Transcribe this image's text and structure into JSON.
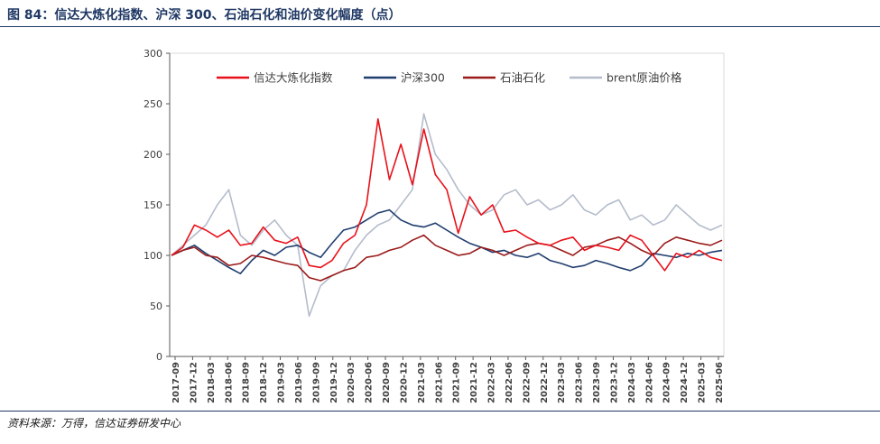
{
  "figure_title": "图 84：信达大炼化指数、沪深 300、石油石化和油价变化幅度（点）",
  "source_note": "资料来源：万得，信达证券研发中心",
  "chart_data": {
    "type": "line",
    "title": "",
    "xlabel": "",
    "ylabel": "",
    "ylim": [
      0,
      300
    ],
    "yticks": [
      0,
      50,
      100,
      150,
      200,
      250,
      300
    ],
    "grid": false,
    "legend_position": "top-center",
    "x_tick_labels": [
      "2017-09",
      "2017-12",
      "2018-03",
      "2018-06",
      "2018-09",
      "2018-12",
      "2019-03",
      "2019-06",
      "2019-09",
      "2019-12",
      "2020-03",
      "2020-06",
      "2020-09",
      "2020-12",
      "2021-03",
      "2021-06",
      "2021-09",
      "2021-12",
      "2022-03",
      "2022-06",
      "2022-09",
      "2022-12",
      "2023-03",
      "2023-06",
      "2023-09",
      "2023-12",
      "2024-03",
      "2024-06",
      "2024-09",
      "2024-12",
      "2025-03",
      "2025-06"
    ],
    "series": [
      {
        "name": "信达大炼化指数",
        "color": "#e8111a",
        "values": [
          100,
          108,
          130,
          125,
          118,
          125,
          110,
          112,
          128,
          115,
          112,
          118,
          90,
          88,
          95,
          112,
          120,
          150,
          235,
          175,
          210,
          170,
          225,
          180,
          165,
          122,
          158,
          140,
          150,
          123,
          125,
          118,
          112,
          110,
          115,
          118,
          105,
          110,
          108,
          105,
          120,
          115,
          100,
          85,
          102,
          98,
          105,
          98,
          95
        ]
      },
      {
        "name": "沪深300",
        "color": "#1f3d6e",
        "values": [
          100,
          105,
          110,
          102,
          95,
          88,
          82,
          95,
          105,
          100,
          108,
          110,
          103,
          98,
          112,
          125,
          128,
          135,
          142,
          145,
          135,
          130,
          128,
          132,
          125,
          118,
          112,
          108,
          103,
          105,
          100,
          98,
          102,
          95,
          92,
          88,
          90,
          95,
          92,
          88,
          85,
          90,
          102,
          100,
          98,
          102,
          100,
          103,
          105
        ]
      },
      {
        "name": "石油石化",
        "color": "#9b1b1b",
        "values": [
          100,
          105,
          108,
          100,
          98,
          90,
          92,
          100,
          98,
          95,
          92,
          90,
          78,
          75,
          80,
          85,
          88,
          98,
          100,
          105,
          108,
          115,
          120,
          110,
          105,
          100,
          102,
          108,
          105,
          100,
          105,
          110,
          112,
          110,
          105,
          100,
          108,
          110,
          115,
          118,
          112,
          105,
          100,
          112,
          118,
          115,
          112,
          110,
          115
        ]
      },
      {
        "name": "brent原油价格",
        "color": "#b4bccb",
        "values": [
          100,
          110,
          120,
          130,
          150,
          165,
          120,
          110,
          125,
          135,
          120,
          110,
          40,
          70,
          80,
          85,
          105,
          120,
          130,
          135,
          150,
          165,
          240,
          200,
          185,
          165,
          150,
          140,
          145,
          160,
          165,
          150,
          155,
          145,
          150,
          160,
          145,
          140,
          150,
          155,
          135,
          140,
          130,
          135,
          150,
          140,
          130,
          125,
          130
        ]
      }
    ]
  }
}
